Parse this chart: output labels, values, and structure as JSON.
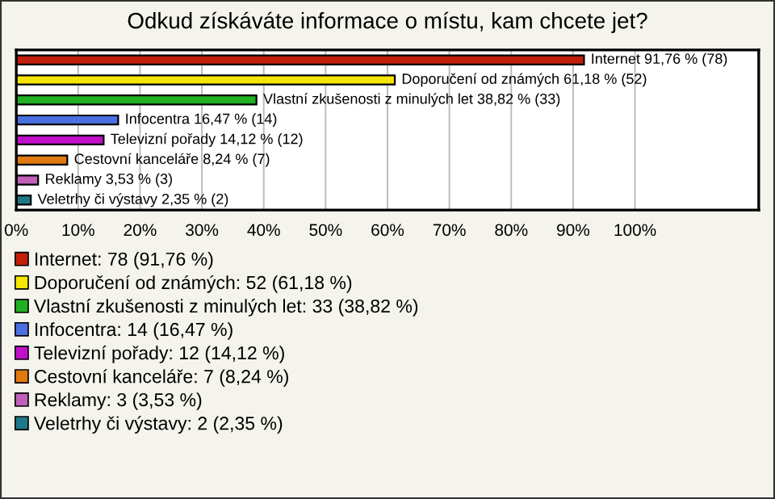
{
  "chart_data": {
    "type": "bar",
    "orientation": "horizontal",
    "title": "Odkud získáváte informace o místu, kam chcete jet?",
    "categories": [
      null,
      null,
      null,
      null,
      null,
      null,
      null,
      null
    ],
    "series": [
      {
        "name": "Internet: 78 (91,76 %)",
        "color": "#c0200b",
        "values": [
          91.76,
          null,
          null,
          null,
          null,
          null,
          null,
          null
        ],
        "value_labels": [
          "Internet 91,76 % (78)",
          null,
          null,
          null,
          null,
          null,
          null,
          null
        ]
      },
      {
        "name": "Doporučení od známých: 52 (61,18 %)",
        "color": "#f5e600",
        "values": [
          null,
          61.18,
          null,
          null,
          null,
          null,
          null,
          null
        ],
        "value_labels": [
          null,
          "Doporučení od známých 61,18 % (52)",
          null,
          null,
          null,
          null,
          null,
          null
        ]
      },
      {
        "name": "Vlastní zkušenosti z minulých let: 33 (38,82 %)",
        "color": "#22b022",
        "values": [
          null,
          null,
          38.82,
          null,
          null,
          null,
          null,
          null
        ],
        "value_labels": [
          null,
          null,
          "Vlastní zkušenosti z minulých let 38,82 % (33)",
          null,
          null,
          null,
          null,
          null
        ]
      },
      {
        "name": "Infocentra: 14 (16,47 %)",
        "color": "#4a6fe0",
        "values": [
          null,
          null,
          null,
          16.47,
          null,
          null,
          null,
          null
        ],
        "value_labels": [
          null,
          null,
          null,
          "Infocentra 16,47 % (14)",
          null,
          null,
          null,
          null
        ]
      },
      {
        "name": "Televizní pořady: 12 (14,12 %)",
        "color": "#c010c8",
        "values": [
          null,
          null,
          null,
          null,
          14.12,
          null,
          null,
          null
        ],
        "value_labels": [
          null,
          null,
          null,
          null,
          "Televizní pořady 14,12 % (12)",
          null,
          null,
          null
        ]
      },
      {
        "name": "Cestovní kanceláře: 7 (8,24 %)",
        "color": "#e07a10",
        "values": [
          null,
          null,
          null,
          null,
          null,
          8.24,
          null,
          null
        ],
        "value_labels": [
          null,
          null,
          null,
          null,
          null,
          "Cestovní kanceláře 8,24 % (7)",
          null,
          null
        ]
      },
      {
        "name": "Reklamy: 3 (3,53 %)",
        "color": "#c060b8",
        "values": [
          null,
          null,
          null,
          null,
          null,
          null,
          3.53,
          null
        ],
        "value_labels": [
          null,
          null,
          null,
          null,
          null,
          null,
          "Reklamy 3,53 % (3)",
          null
        ]
      },
      {
        "name": "Veletrhy či výstavy: 2 (2,35 %)",
        "color": "#1e7a8a",
        "values": [
          null,
          null,
          null,
          null,
          null,
          null,
          null,
          2.35
        ],
        "value_labels": [
          null,
          null,
          null,
          null,
          null,
          null,
          null,
          "Veletrhy či výstavy 2,35 % (2)"
        ]
      }
    ],
    "xlim": [
      0,
      120
    ],
    "xticks": [
      {
        "value": 0,
        "label": "0%"
      },
      {
        "value": 10,
        "label": "10%"
      },
      {
        "value": 20,
        "label": "20%"
      },
      {
        "value": 30,
        "label": "30%"
      },
      {
        "value": 40,
        "label": "40%"
      },
      {
        "value": 50,
        "label": "50%"
      },
      {
        "value": 60,
        "label": "60%"
      },
      {
        "value": 70,
        "label": "70%"
      },
      {
        "value": 80,
        "label": "80%"
      },
      {
        "value": 90,
        "label": "90%"
      },
      {
        "value": 100,
        "label": "100%"
      }
    ],
    "grid": "x",
    "legend": "bottom"
  }
}
